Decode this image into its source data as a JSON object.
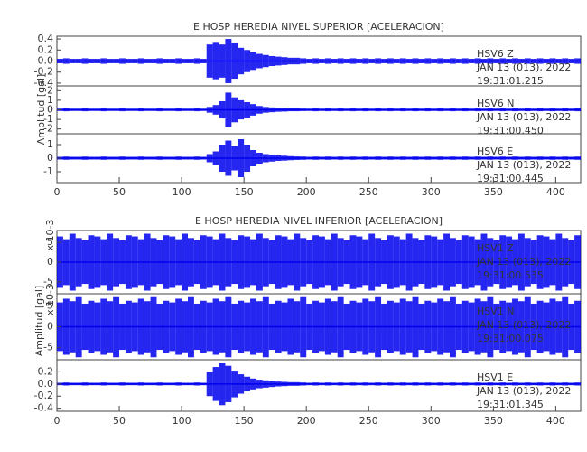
{
  "chart_data": [
    {
      "type": "seismogram",
      "title": "E HOSP HEREDIA NIVEL SUPERIOR [ACELERACION]",
      "ylabel": "Amplitud [gal]",
      "xlim": [
        0,
        420
      ],
      "xticks": [
        0,
        50,
        100,
        150,
        200,
        250,
        300,
        350,
        400
      ],
      "bins": [
        0,
        5,
        10,
        15,
        20,
        25,
        30,
        35,
        40,
        45,
        50,
        55,
        60,
        65,
        70,
        75,
        80,
        85,
        90,
        95,
        100,
        105,
        110,
        115,
        120,
        125,
        130,
        135,
        140,
        145,
        150,
        155,
        160,
        165,
        170,
        175,
        180,
        185,
        190,
        195,
        200,
        205,
        210,
        215,
        220,
        225,
        230,
        235,
        240,
        245,
        250,
        255,
        260,
        265,
        270,
        275,
        280,
        285,
        290,
        295,
        300,
        305,
        310,
        315,
        320,
        325,
        330,
        335,
        340,
        345,
        350,
        355,
        360,
        365,
        370,
        375,
        380,
        385,
        390,
        395,
        400,
        405,
        410,
        415,
        420
      ],
      "panels": [
        {
          "labels": [
            "HSV6 Z",
            "JAN 13 (013), 2022",
            "19:31:01.215"
          ],
          "color": "#0000ee",
          "ylim": [
            -0.45,
            0.45
          ],
          "yticks": [
            0.4,
            0.2,
            {
              "value": 0,
              "label": "0.0"
            },
            -0.2,
            -0.4
          ],
          "values": [
            0.04,
            0.05,
            0.04,
            0.04,
            0.05,
            0.04,
            0.04,
            0.05,
            0.04,
            0.04,
            0.05,
            0.04,
            0.04,
            0.05,
            0.04,
            0.04,
            0.05,
            0.04,
            0.04,
            0.05,
            0.04,
            0.04,
            0.05,
            0.04,
            0.3,
            0.33,
            0.3,
            0.4,
            0.32,
            0.24,
            0.2,
            0.16,
            0.13,
            0.11,
            0.09,
            0.08,
            0.07,
            0.06,
            0.06,
            0.05,
            0.04,
            0.05,
            0.04,
            0.05,
            0.04,
            0.05,
            0.04,
            0.05,
            0.04,
            0.05,
            0.04,
            0.05,
            0.04,
            0.05,
            0.04,
            0.05,
            0.04,
            0.05,
            0.04,
            0.05,
            0.04,
            0.05,
            0.04,
            0.05,
            0.04,
            0.05,
            0.04,
            0.05,
            0.04,
            0.05,
            0.04,
            0.05,
            0.04,
            0.05,
            0.04,
            0.05,
            0.04,
            0.05,
            0.04,
            0.05,
            0.04,
            0.05,
            0.04,
            0.05
          ]
        },
        {
          "labels": [
            "HSV6 N",
            "JAN 13 (013), 2022",
            "19:31:00.450"
          ],
          "color": "#0000ee",
          "ylim": [
            -2.5,
            2.5
          ],
          "yticks": [
            2,
            1,
            0,
            -1,
            -2
          ],
          "values": [
            0.12,
            0.15,
            0.12,
            0.12,
            0.15,
            0.12,
            0.12,
            0.15,
            0.12,
            0.12,
            0.15,
            0.12,
            0.12,
            0.15,
            0.12,
            0.12,
            0.15,
            0.12,
            0.12,
            0.15,
            0.12,
            0.12,
            0.15,
            0.12,
            0.3,
            0.5,
            0.9,
            1.8,
            1.3,
            1.0,
            0.8,
            0.6,
            0.4,
            0.3,
            0.25,
            0.2,
            0.18,
            0.15,
            0.15,
            0.13,
            0.12,
            0.15,
            0.12,
            0.15,
            0.12,
            0.15,
            0.12,
            0.15,
            0.12,
            0.15,
            0.12,
            0.15,
            0.12,
            0.15,
            0.12,
            0.15,
            0.12,
            0.15,
            0.12,
            0.15,
            0.12,
            0.15,
            0.12,
            0.15,
            0.12,
            0.15,
            0.12,
            0.15,
            0.12,
            0.15,
            0.12,
            0.15,
            0.12,
            0.15,
            0.12,
            0.15,
            0.12,
            0.15,
            0.12,
            0.15,
            0.12,
            0.15,
            0.12,
            0.15
          ]
        },
        {
          "labels": [
            "HSV6 E",
            "JAN 13 (013), 2022",
            "19:31:00.445"
          ],
          "color": "#0000ee",
          "ylim": [
            -1.8,
            1.8
          ],
          "yticks": [
            1,
            0,
            -1
          ],
          "values": [
            0.1,
            0.12,
            0.1,
            0.1,
            0.12,
            0.1,
            0.1,
            0.12,
            0.1,
            0.1,
            0.12,
            0.1,
            0.1,
            0.12,
            0.1,
            0.1,
            0.12,
            0.1,
            0.1,
            0.12,
            0.1,
            0.1,
            0.12,
            0.1,
            0.3,
            0.5,
            1.0,
            1.3,
            0.9,
            1.4,
            1.0,
            0.6,
            0.4,
            0.3,
            0.25,
            0.2,
            0.18,
            0.15,
            0.13,
            0.12,
            0.1,
            0.12,
            0.1,
            0.12,
            0.1,
            0.12,
            0.1,
            0.12,
            0.1,
            0.12,
            0.1,
            0.12,
            0.1,
            0.12,
            0.1,
            0.12,
            0.1,
            0.12,
            0.1,
            0.12,
            0.1,
            0.12,
            0.1,
            0.12,
            0.1,
            0.12,
            0.1,
            0.12,
            0.1,
            0.12,
            0.1,
            0.12,
            0.1,
            0.12,
            0.1,
            0.12,
            0.1,
            0.12,
            0.1,
            0.12,
            0.1,
            0.12,
            0.1,
            0.12
          ]
        }
      ]
    },
    {
      "type": "seismogram",
      "title": "E HOSP HEREDIA NIVEL INFERIOR [ACELERACION]",
      "ylabel": "Amplitud [gal]",
      "xlim": [
        0,
        420
      ],
      "xticks": [
        0,
        50,
        100,
        150,
        200,
        250,
        300,
        350,
        400
      ],
      "bins": [
        0,
        5,
        10,
        15,
        20,
        25,
        30,
        35,
        40,
        45,
        50,
        55,
        60,
        65,
        70,
        75,
        80,
        85,
        90,
        95,
        100,
        105,
        110,
        115,
        120,
        125,
        130,
        135,
        140,
        145,
        150,
        155,
        160,
        165,
        170,
        175,
        180,
        185,
        190,
        195,
        200,
        205,
        210,
        215,
        220,
        225,
        230,
        235,
        240,
        245,
        250,
        255,
        260,
        265,
        270,
        275,
        280,
        285,
        290,
        295,
        300,
        305,
        310,
        315,
        320,
        325,
        330,
        335,
        340,
        345,
        350,
        355,
        360,
        365,
        370,
        375,
        380,
        385,
        390,
        395,
        400,
        405,
        410,
        415,
        420
      ],
      "panels": [
        {
          "labels": [
            "HSV1 Z",
            "JAN 13 (013), 2022",
            "19:31:00.535"
          ],
          "unit": "x 10-3",
          "color": "#0000ee",
          "ylim": [
            -8,
            8
          ],
          "yticks": [
            5,
            0,
            -5
          ],
          "values": [
            6.5,
            5.8,
            7.2,
            6.1,
            5.5,
            6.8,
            6.5,
            5.8,
            7.2,
            6.1,
            5.5,
            6.8,
            6.5,
            5.8,
            7.2,
            6.1,
            5.5,
            6.8,
            6.5,
            5.8,
            7.2,
            6.1,
            5.5,
            6.8,
            6.5,
            5.8,
            7.2,
            6.1,
            5.5,
            6.8,
            6.5,
            5.8,
            7.2,
            6.1,
            5.5,
            6.8,
            6.5,
            5.8,
            7.2,
            6.1,
            5.5,
            6.8,
            6.5,
            5.8,
            7.2,
            6.1,
            5.5,
            6.8,
            6.5,
            5.8,
            7.2,
            6.1,
            5.5,
            6.8,
            6.5,
            5.8,
            7.2,
            6.1,
            5.5,
            6.8,
            6.5,
            5.8,
            7.2,
            6.1,
            5.5,
            6.8,
            6.5,
            5.8,
            7.2,
            6.1,
            5.5,
            6.8,
            6.5,
            5.8,
            7.2,
            6.1,
            5.5,
            6.8,
            6.5,
            5.8,
            7.2,
            6.1,
            5.5,
            6.8
          ]
        },
        {
          "labels": [
            "HSV1 N",
            "JAN 13 (013), 2022",
            "19:31:00.075"
          ],
          "unit": "x 10-3",
          "color": "#0000ee",
          "ylim": [
            -8,
            8
          ],
          "yticks": [
            5,
            0,
            -5
          ],
          "values": [
            5.9,
            6.8,
            6.2,
            7.4,
            5.6,
            6.3,
            5.9,
            6.8,
            6.2,
            7.4,
            5.6,
            6.3,
            5.9,
            6.8,
            6.2,
            7.4,
            5.6,
            6.3,
            5.9,
            6.8,
            6.2,
            7.4,
            5.6,
            6.3,
            5.9,
            6.8,
            6.2,
            7.4,
            5.6,
            6.3,
            5.9,
            6.8,
            6.2,
            7.4,
            5.6,
            6.3,
            5.9,
            6.8,
            6.2,
            7.4,
            5.6,
            6.3,
            5.9,
            6.8,
            6.2,
            7.4,
            5.6,
            6.3,
            5.9,
            6.8,
            6.2,
            7.4,
            5.6,
            6.3,
            5.9,
            6.8,
            6.2,
            7.4,
            5.6,
            6.3,
            5.9,
            6.8,
            6.2,
            7.4,
            5.6,
            6.3,
            5.9,
            6.8,
            6.2,
            7.4,
            5.6,
            6.3,
            5.9,
            6.8,
            6.2,
            7.4,
            5.6,
            6.3,
            5.9,
            6.8,
            6.2,
            7.4,
            5.6,
            6.3
          ]
        },
        {
          "labels": [
            "HSV1 E",
            "JAN 13 (013), 2022",
            "19:31:01.345"
          ],
          "color": "#0000ee",
          "ylim": [
            -0.45,
            0.4
          ],
          "yticks": [
            0.2,
            {
              "value": 0,
              "label": "0.0"
            },
            -0.2,
            -0.4
          ],
          "values": [
            0.02,
            0.025,
            0.02,
            0.02,
            0.025,
            0.02,
            0.02,
            0.025,
            0.02,
            0.02,
            0.025,
            0.02,
            0.02,
            0.025,
            0.02,
            0.02,
            0.025,
            0.02,
            0.02,
            0.025,
            0.02,
            0.02,
            0.025,
            0.02,
            0.2,
            0.28,
            0.35,
            0.3,
            0.22,
            0.16,
            0.12,
            0.09,
            0.07,
            0.06,
            0.05,
            0.04,
            0.035,
            0.03,
            0.03,
            0.025,
            0.02,
            0.025,
            0.02,
            0.025,
            0.02,
            0.025,
            0.02,
            0.025,
            0.02,
            0.025,
            0.02,
            0.025,
            0.02,
            0.025,
            0.02,
            0.025,
            0.02,
            0.025,
            0.02,
            0.025,
            0.02,
            0.025,
            0.02,
            0.025,
            0.02,
            0.025,
            0.02,
            0.025,
            0.02,
            0.025,
            0.02,
            0.025,
            0.02,
            0.025,
            0.02,
            0.025,
            0.02,
            0.025,
            0.02,
            0.025,
            0.02,
            0.025,
            0.02,
            0.025
          ]
        }
      ]
    }
  ]
}
